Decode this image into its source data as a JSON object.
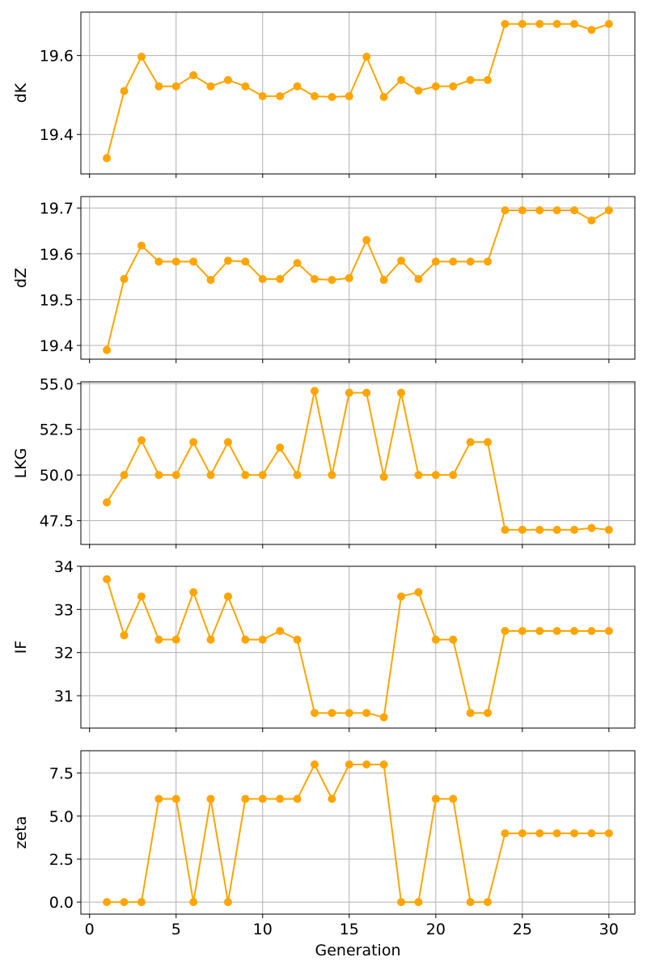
{
  "chart_data": {
    "type": "line",
    "layout": "stacked-subplots",
    "shared_x": true,
    "xlabel": "Generation",
    "xlim": [
      -0.5,
      31.5
    ],
    "xticks": [
      0,
      5,
      10,
      15,
      20,
      25,
      30
    ],
    "x": [
      1,
      2,
      3,
      4,
      5,
      6,
      7,
      8,
      9,
      10,
      11,
      12,
      13,
      14,
      15,
      16,
      17,
      18,
      19,
      20,
      21,
      22,
      23,
      24,
      25,
      26,
      27,
      28,
      29,
      30
    ],
    "grid": true,
    "marker": "circle",
    "color": "#FFA500",
    "panels": [
      {
        "ylabel": "dK",
        "ylim": [
          19.3,
          19.71
        ],
        "yticks": [
          19.4,
          19.6
        ],
        "ytick_labels": [
          "19.4",
          "19.6"
        ],
        "values": [
          19.34,
          19.51,
          19.597,
          19.522,
          19.522,
          19.55,
          19.522,
          19.538,
          19.522,
          19.497,
          19.497,
          19.522,
          19.497,
          19.495,
          19.497,
          19.597,
          19.495,
          19.538,
          19.511,
          19.522,
          19.522,
          19.538,
          19.538,
          19.68,
          19.68,
          19.68,
          19.68,
          19.68,
          19.665,
          19.68
        ]
      },
      {
        "ylabel": "dZ",
        "ylim": [
          19.37,
          19.725
        ],
        "yticks": [
          19.4,
          19.5,
          19.6,
          19.7
        ],
        "ytick_labels": [
          "19.4",
          "19.5",
          "19.6",
          "19.7"
        ],
        "values": [
          19.39,
          19.545,
          19.618,
          19.583,
          19.583,
          19.583,
          19.543,
          19.585,
          19.583,
          19.545,
          19.545,
          19.58,
          19.545,
          19.543,
          19.547,
          19.63,
          19.543,
          19.585,
          19.545,
          19.583,
          19.583,
          19.583,
          19.583,
          19.695,
          19.695,
          19.695,
          19.695,
          19.695,
          19.673,
          19.695
        ]
      },
      {
        "ylabel": "LKG",
        "ylim": [
          46.2,
          55.1
        ],
        "yticks": [
          47.5,
          50.0,
          52.5,
          55.0
        ],
        "ytick_labels": [
          "47.5",
          "50.0",
          "52.5",
          "55.0"
        ],
        "values": [
          48.5,
          50.0,
          51.9,
          50.0,
          50.0,
          51.8,
          50.0,
          51.8,
          50.0,
          50.0,
          51.5,
          50.0,
          54.6,
          50.0,
          54.5,
          54.5,
          49.9,
          54.5,
          50.0,
          50.0,
          50.0,
          51.8,
          51.8,
          47.0,
          47.0,
          47.0,
          47.0,
          47.0,
          47.1,
          47.0
        ]
      },
      {
        "ylabel": "IF",
        "ylim": [
          30.25,
          34.0
        ],
        "yticks": [
          31,
          32,
          33,
          34
        ],
        "ytick_labels": [
          "31",
          "32",
          "33",
          "34"
        ],
        "values": [
          33.7,
          32.4,
          33.3,
          32.3,
          32.3,
          33.4,
          32.3,
          33.3,
          32.3,
          32.3,
          32.5,
          32.3,
          30.6,
          30.6,
          30.6,
          30.6,
          30.5,
          33.3,
          33.4,
          32.3,
          32.3,
          30.6,
          30.6,
          32.5,
          32.5,
          32.5,
          32.5,
          32.5,
          32.5,
          32.5
        ]
      },
      {
        "ylabel": "zeta",
        "ylim": [
          -0.7,
          8.8
        ],
        "yticks": [
          0.0,
          2.5,
          5.0,
          7.5
        ],
        "ytick_labels": [
          "0.0",
          "2.5",
          "5.0",
          "7.5"
        ],
        "values": [
          0,
          0,
          0,
          6,
          6,
          0,
          6,
          0,
          6,
          6,
          6,
          6,
          8,
          6,
          8,
          8,
          8,
          0,
          0,
          6,
          6,
          0,
          0,
          4,
          4,
          4,
          4,
          4,
          4,
          4
        ]
      }
    ]
  }
}
